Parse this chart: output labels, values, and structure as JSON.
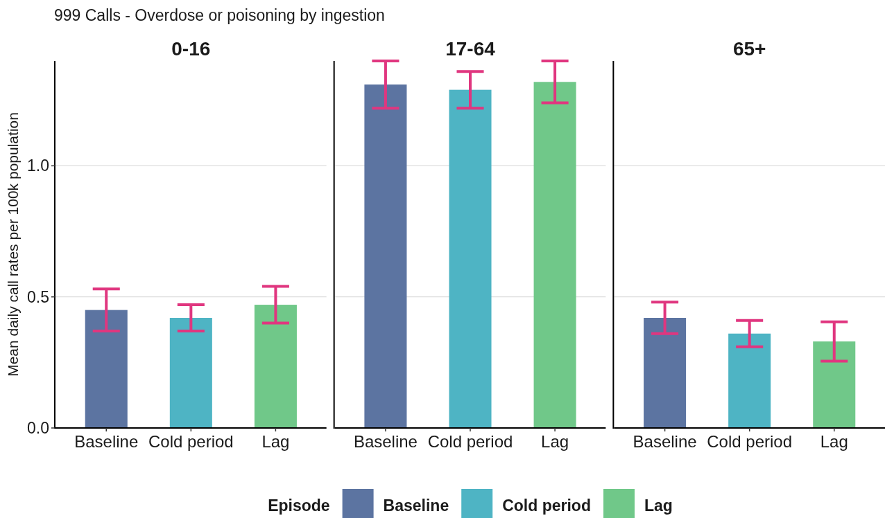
{
  "chart_data": [
    {
      "type": "bar",
      "title": "0-16",
      "annotations": [
        "999 Calls - Overdose or poisoning by ingestion"
      ],
      "ylabel": "Mean daily call rates per 100k population",
      "categories": [
        "Baseline",
        "Cold period",
        "Lag"
      ],
      "values": [
        0.45,
        0.42,
        0.47
      ],
      "colors": [
        "#5c74a1",
        "#4eb4c4",
        "#70c889"
      ],
      "errors": [
        0.08,
        0.05,
        0.07
      ],
      "ylim": [
        0,
        1.4
      ],
      "yticks": [
        {
          "value": 0,
          "label": "0.0"
        },
        {
          "value": 0.5,
          "label": "0.5"
        },
        {
          "value": 1,
          "label": "1.0"
        }
      ],
      "grid": "y"
    },
    {
      "type": "bar",
      "title": "17-64",
      "stacked": true,
      "categories": [
        "Baseline",
        "Cold period",
        "Lag"
      ],
      "series": [
        {
          "name": "Baseline",
          "color": "#5c74a1",
          "values": [
            1.31,
            null,
            null
          ],
          "errors": [
            0.09,
            null,
            null
          ]
        },
        {
          "name": "Cold period",
          "color": "#4eb4c4",
          "values": [
            null,
            1.29,
            null
          ],
          "errors": [
            null,
            0.07,
            null
          ]
        },
        {
          "name": "Lag",
          "color": "#70c889",
          "values": [
            null,
            null,
            1.32
          ],
          "errors": [
            null,
            null,
            0.08
          ]
        }
      ],
      "ylim": [
        0,
        1.4
      ],
      "yticks": [
        0,
        0.5,
        1
      ],
      "grid": "y",
      "tick_labels": "x",
      "legend": "bottom",
      "legend_title": "Episode"
    },
    {
      "type": "bar",
      "title": "65+",
      "categories": [
        "Baseline",
        "Cold period",
        "Lag"
      ],
      "values": [
        0.42,
        0.36,
        0.33
      ],
      "colors": [
        "#5c74a1",
        "#4eb4c4",
        "#70c889"
      ],
      "errors": [
        0.06,
        0.05,
        0.075
      ],
      "ylim": [
        0,
        1.4
      ],
      "yticks": [
        0,
        0.5,
        1
      ],
      "grid": "y",
      "tick_labels": "x"
    }
  ]
}
